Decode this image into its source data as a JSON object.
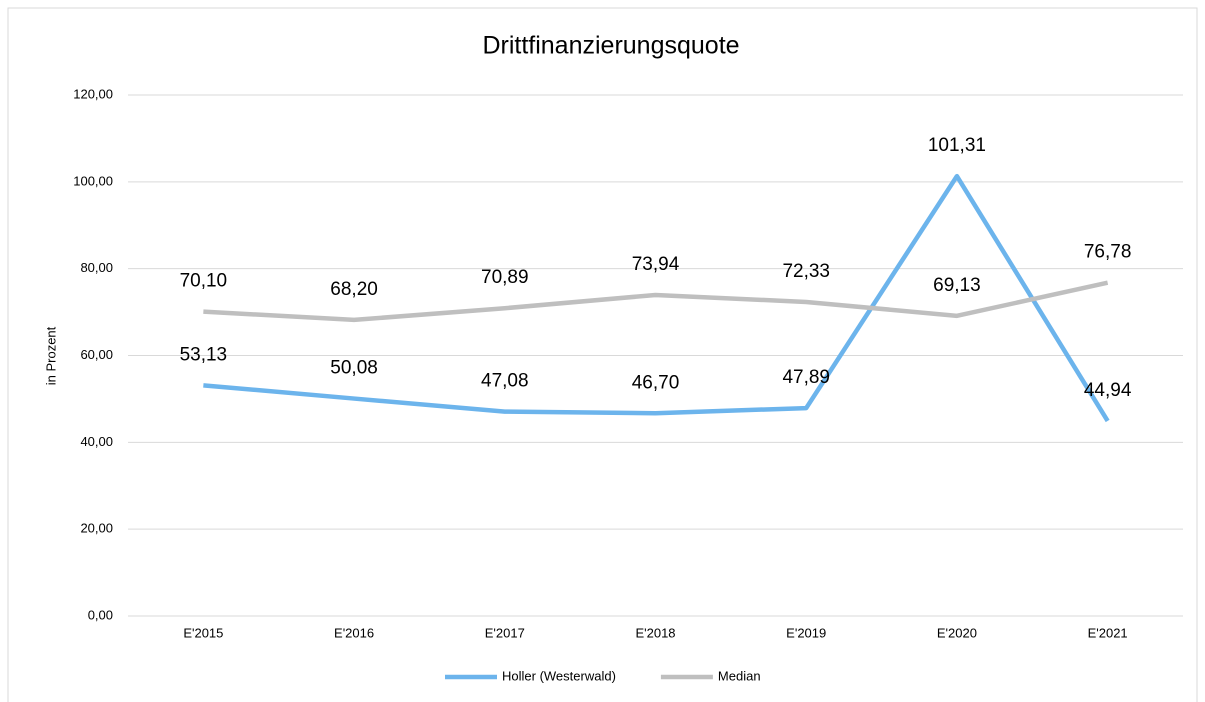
{
  "chart_data": {
    "type": "line",
    "title": "Drittfinanzierungsquote",
    "y_label": "in Prozent",
    "categories": [
      "E'2015",
      "E'2016",
      "E'2017",
      "E'2018",
      "E'2019",
      "E'2020",
      "E'2021"
    ],
    "series": [
      {
        "name": "Holler (Westerwald)",
        "color": "#6cb4ec",
        "values": [
          53.13,
          50.08,
          47.08,
          46.7,
          47.89,
          101.31,
          44.94
        ],
        "value_labels": [
          "53,13",
          "50,08",
          "47,08",
          "46,70",
          "47,89",
          "101,31",
          "44,94"
        ]
      },
      {
        "name": "Median",
        "color": "#bfbfbf",
        "values": [
          70.1,
          68.2,
          70.89,
          73.94,
          72.33,
          69.13,
          76.78
        ],
        "value_labels": [
          "70,10",
          "68,20",
          "70,89",
          "73,94",
          "72,33",
          "69,13",
          "76,78"
        ]
      }
    ],
    "ylim": [
      0,
      120
    ],
    "yticks": [
      {
        "value": 0,
        "label": "0,00"
      },
      {
        "value": 20,
        "label": "20,00"
      },
      {
        "value": 40,
        "label": "40,00"
      },
      {
        "value": 60,
        "label": "60,00"
      },
      {
        "value": 80,
        "label": "80,00"
      },
      {
        "value": 100,
        "label": "100,00"
      },
      {
        "value": 120,
        "label": "120,00"
      }
    ],
    "grid": true,
    "legend": "bottom"
  }
}
